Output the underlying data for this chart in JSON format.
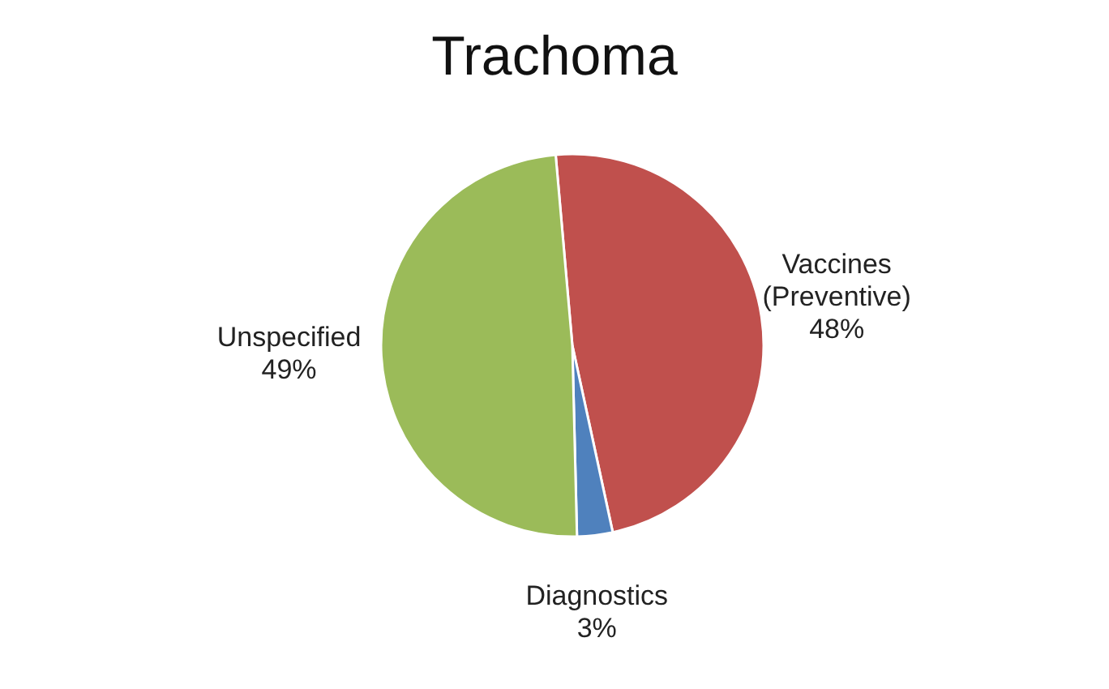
{
  "chart_data": {
    "type": "pie",
    "title": "Trachoma",
    "categories": [
      "Vaccines (Preventive)",
      "Diagnostics",
      "Unspecified"
    ],
    "values": [
      48,
      3,
      49
    ],
    "colors": [
      "#c0504d",
      "#4f81bd",
      "#9bbb59"
    ],
    "value_labels": [
      "48%",
      "3%",
      "49%"
    ]
  }
}
